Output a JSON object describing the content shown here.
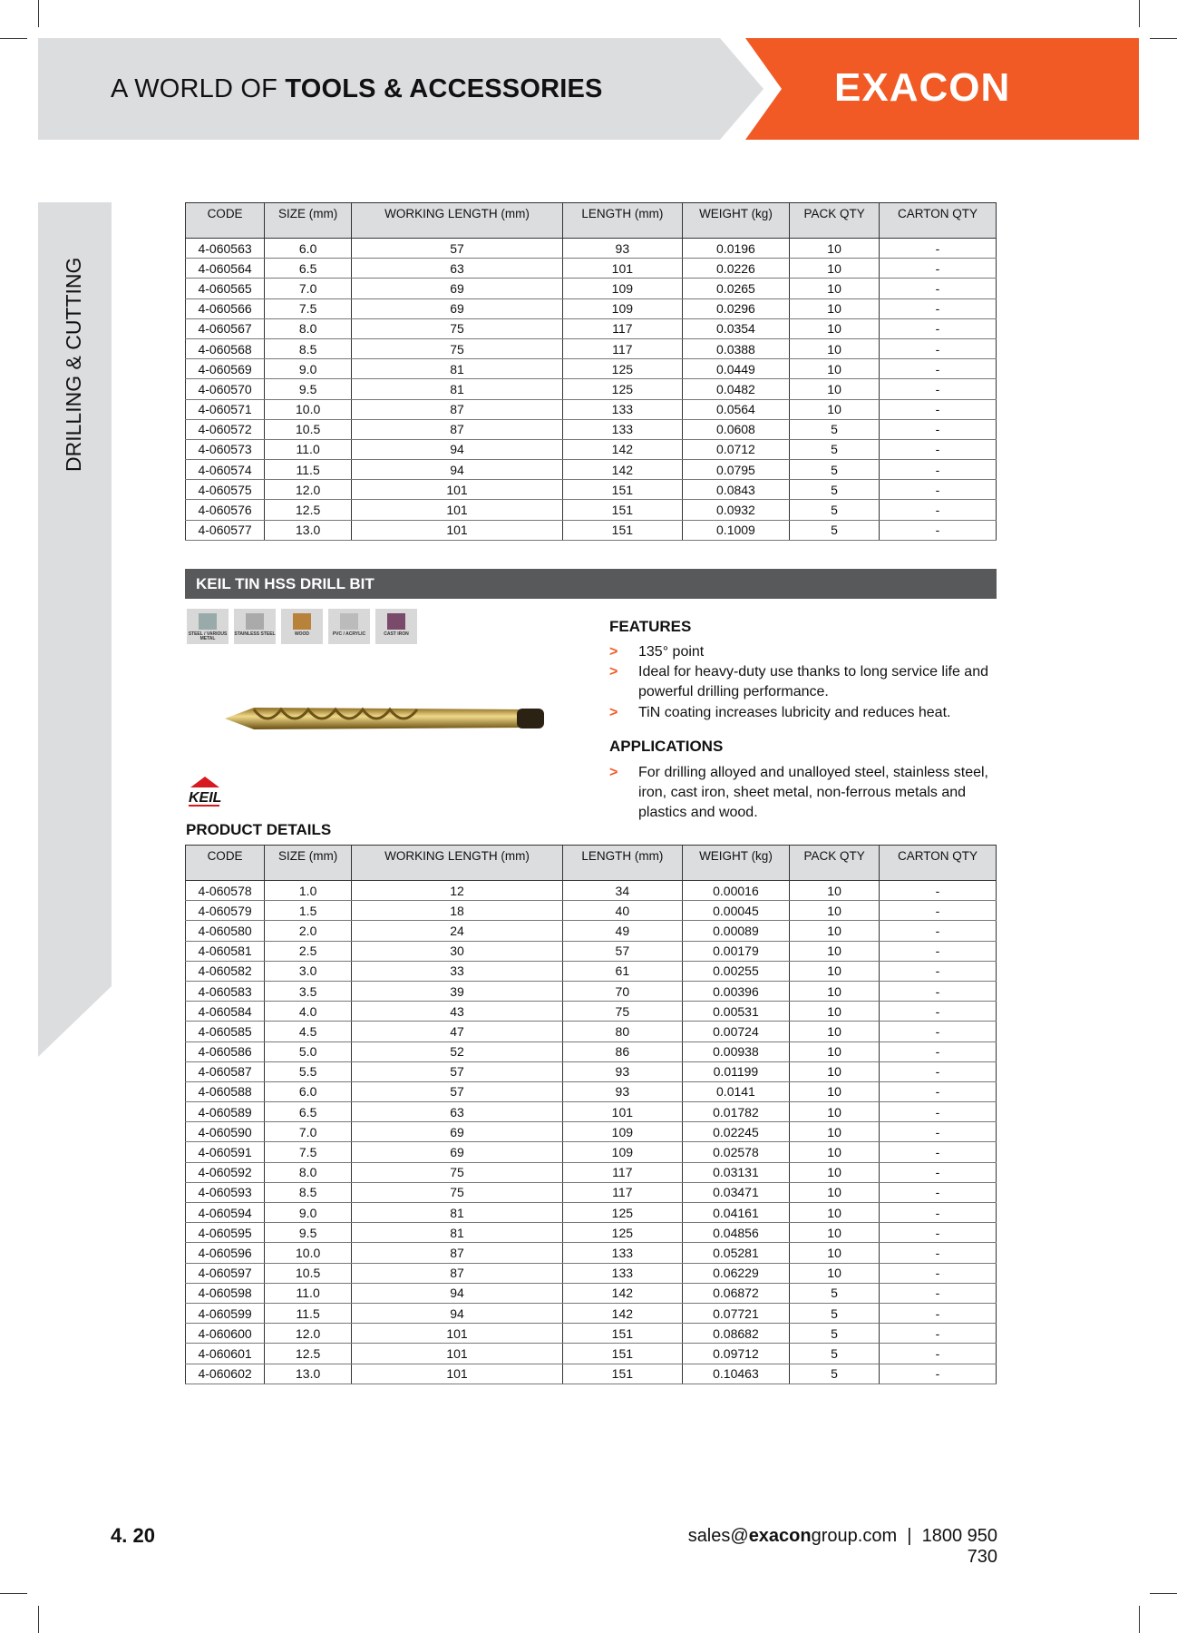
{
  "header": {
    "title_light": "A WORLD OF ",
    "title_bold": "TOOLS & ACCESSORIES",
    "logo": "EXACON",
    "accent": "#f15a24"
  },
  "sidebar": {
    "label": "DRILLING & CUTTING"
  },
  "columns": [
    "CODE",
    "SIZE (mm)",
    "WORKING LENGTH (mm)",
    "LENGTH (mm)",
    "WEIGHT (kg)",
    "PACK QTY",
    "CARTON QTY"
  ],
  "table1": [
    [
      "4-060563",
      "6.0",
      "57",
      "93",
      "0.0196",
      "10",
      "-"
    ],
    [
      "4-060564",
      "6.5",
      "63",
      "101",
      "0.0226",
      "10",
      "-"
    ],
    [
      "4-060565",
      "7.0",
      "69",
      "109",
      "0.0265",
      "10",
      "-"
    ],
    [
      "4-060566",
      "7.5",
      "69",
      "109",
      "0.0296",
      "10",
      "-"
    ],
    [
      "4-060567",
      "8.0",
      "75",
      "117",
      "0.0354",
      "10",
      "-"
    ],
    [
      "4-060568",
      "8.5",
      "75",
      "117",
      "0.0388",
      "10",
      "-"
    ],
    [
      "4-060569",
      "9.0",
      "81",
      "125",
      "0.0449",
      "10",
      "-"
    ],
    [
      "4-060570",
      "9.5",
      "81",
      "125",
      "0.0482",
      "10",
      "-"
    ],
    [
      "4-060571",
      "10.0",
      "87",
      "133",
      "0.0564",
      "10",
      "-"
    ],
    [
      "4-060572",
      "10.5",
      "87",
      "133",
      "0.0608",
      "5",
      "-"
    ],
    [
      "4-060573",
      "11.0",
      "94",
      "142",
      "0.0712",
      "5",
      "-"
    ],
    [
      "4-060574",
      "11.5",
      "94",
      "142",
      "0.0795",
      "5",
      "-"
    ],
    [
      "4-060575",
      "12.0",
      "101",
      "151",
      "0.0843",
      "5",
      "-"
    ],
    [
      "4-060576",
      "12.5",
      "101",
      "151",
      "0.0932",
      "5",
      "-"
    ],
    [
      "4-060577",
      "13.0",
      "101",
      "151",
      "0.1009",
      "5",
      "-"
    ]
  ],
  "product": {
    "title": "KEIL TIN HSS DRILL BIT",
    "brand": "KEIL",
    "materials": [
      "STEEL / VARIOUS METAL",
      "STAINLESS STEEL",
      "WOOD",
      "PVC / ACRYLIC",
      "CAST IRON"
    ],
    "features_title": "FEATURES",
    "features": [
      "135° point",
      "Ideal for heavy-duty use thanks to long service life and powerful drilling performance.",
      "TiN coating increases lubricity and reduces heat."
    ],
    "applications_title": "APPLICATIONS",
    "applications": [
      "For drilling alloyed and unalloyed steel, stainless steel, iron, cast iron, sheet metal, non-ferrous metals and plastics and wood."
    ],
    "details_title": "PRODUCT DETAILS"
  },
  "table2": [
    [
      "4-060578",
      "1.0",
      "12",
      "34",
      "0.00016",
      "10",
      "-"
    ],
    [
      "4-060579",
      "1.5",
      "18",
      "40",
      "0.00045",
      "10",
      "-"
    ],
    [
      "4-060580",
      "2.0",
      "24",
      "49",
      "0.00089",
      "10",
      "-"
    ],
    [
      "4-060581",
      "2.5",
      "30",
      "57",
      "0.00179",
      "10",
      "-"
    ],
    [
      "4-060582",
      "3.0",
      "33",
      "61",
      "0.00255",
      "10",
      "-"
    ],
    [
      "4-060583",
      "3.5",
      "39",
      "70",
      "0.00396",
      "10",
      "-"
    ],
    [
      "4-060584",
      "4.0",
      "43",
      "75",
      "0.00531",
      "10",
      "-"
    ],
    [
      "4-060585",
      "4.5",
      "47",
      "80",
      "0.00724",
      "10",
      "-"
    ],
    [
      "4-060586",
      "5.0",
      "52",
      "86",
      "0.00938",
      "10",
      "-"
    ],
    [
      "4-060587",
      "5.5",
      "57",
      "93",
      "0.01199",
      "10",
      "-"
    ],
    [
      "4-060588",
      "6.0",
      "57",
      "93",
      "0.0141",
      "10",
      "-"
    ],
    [
      "4-060589",
      "6.5",
      "63",
      "101",
      "0.01782",
      "10",
      "-"
    ],
    [
      "4-060590",
      "7.0",
      "69",
      "109",
      "0.02245",
      "10",
      "-"
    ],
    [
      "4-060591",
      "7.5",
      "69",
      "109",
      "0.02578",
      "10",
      "-"
    ],
    [
      "4-060592",
      "8.0",
      "75",
      "117",
      "0.03131",
      "10",
      "-"
    ],
    [
      "4-060593",
      "8.5",
      "75",
      "117",
      "0.03471",
      "10",
      "-"
    ],
    [
      "4-060594",
      "9.0",
      "81",
      "125",
      "0.04161",
      "10",
      "-"
    ],
    [
      "4-060595",
      "9.5",
      "81",
      "125",
      "0.04856",
      "10",
      "-"
    ],
    [
      "4-060596",
      "10.0",
      "87",
      "133",
      "0.05281",
      "10",
      "-"
    ],
    [
      "4-060597",
      "10.5",
      "87",
      "133",
      "0.06229",
      "10",
      "-"
    ],
    [
      "4-060598",
      "11.0",
      "94",
      "142",
      "0.06872",
      "5",
      "-"
    ],
    [
      "4-060599",
      "11.5",
      "94",
      "142",
      "0.07721",
      "5",
      "-"
    ],
    [
      "4-060600",
      "12.0",
      "101",
      "151",
      "0.08682",
      "5",
      "-"
    ],
    [
      "4-060601",
      "12.5",
      "101",
      "151",
      "0.09712",
      "5",
      "-"
    ],
    [
      "4-060602",
      "13.0",
      "101",
      "151",
      "0.10463",
      "5",
      "-"
    ]
  ],
  "footer": {
    "page": "4. 20",
    "email_pre": "sales@",
    "email_bold": "exacon",
    "email_post": "group.com",
    "sep": "|",
    "phone": "1800 950 730"
  }
}
